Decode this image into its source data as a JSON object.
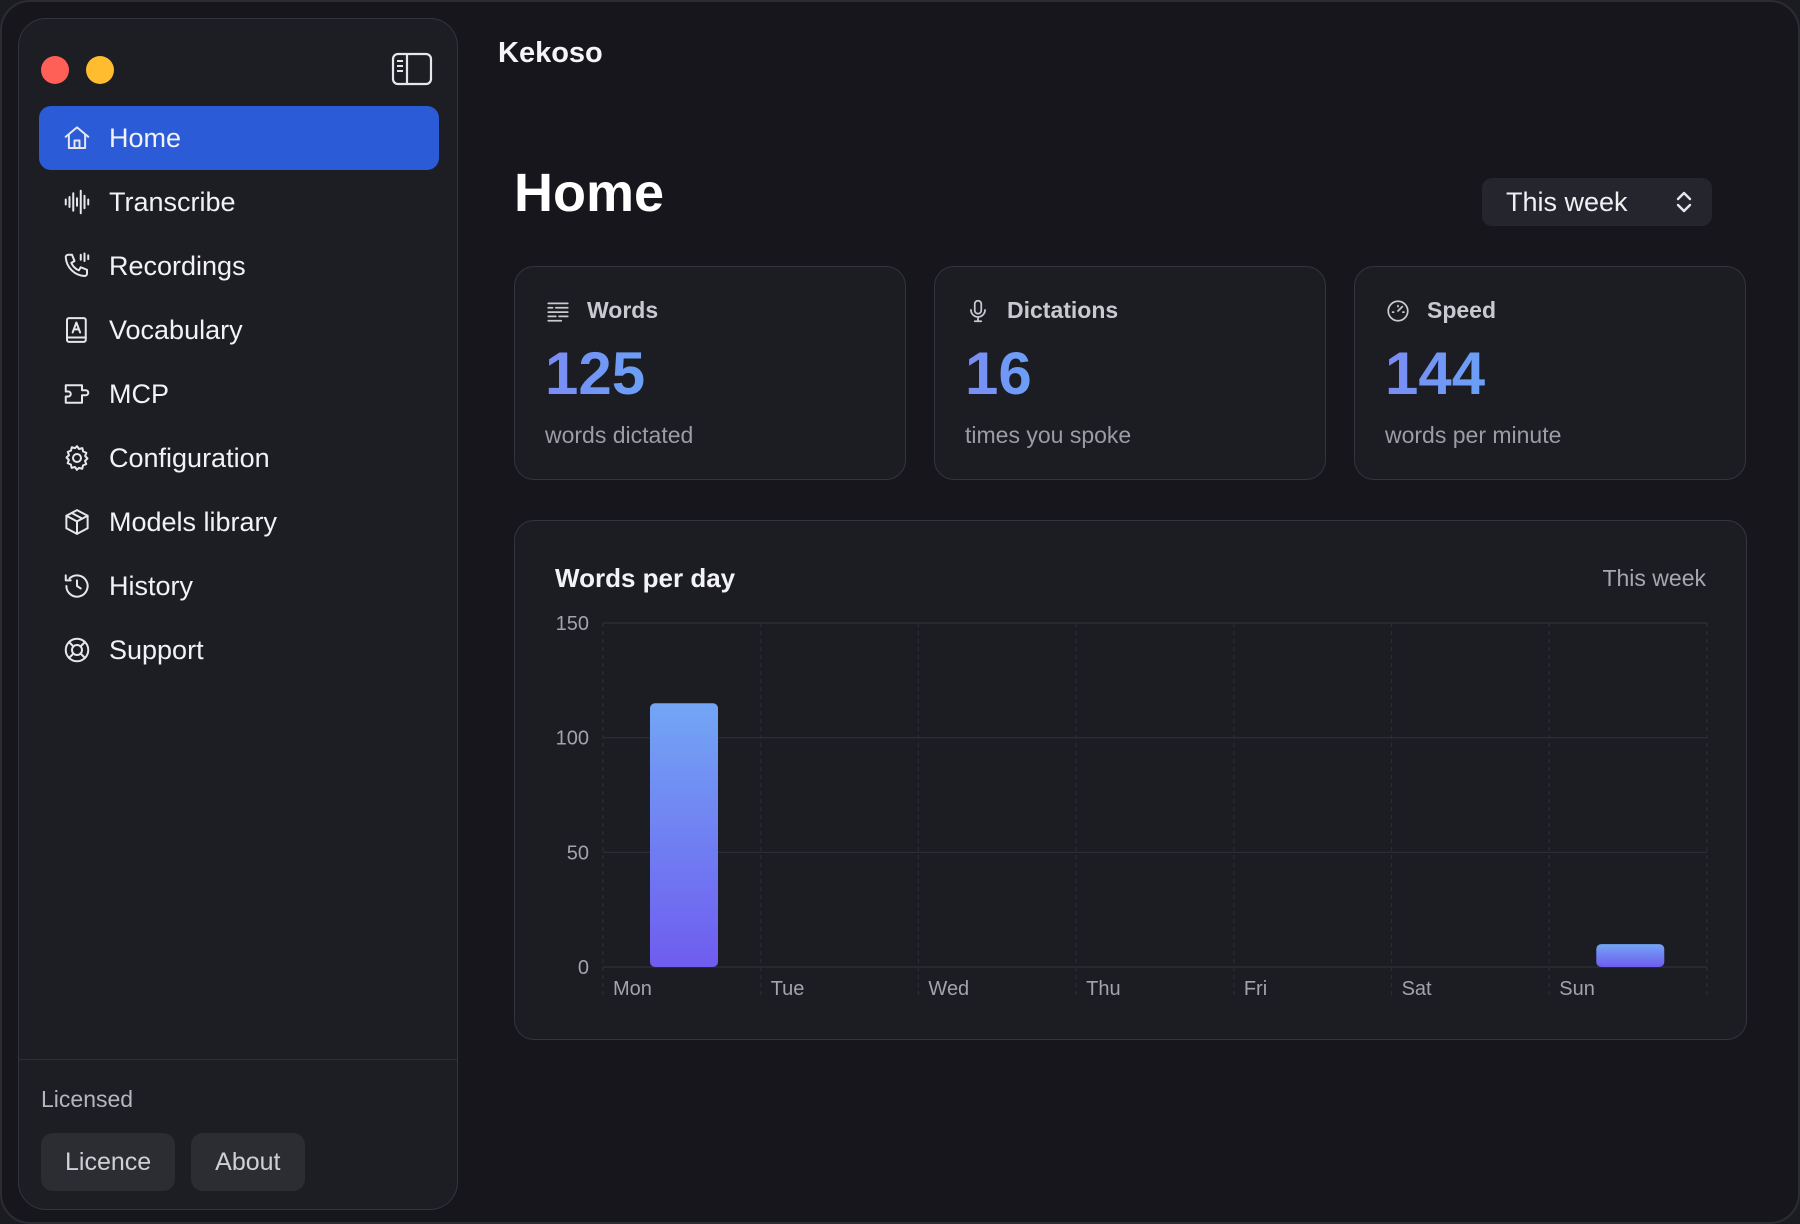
{
  "app": {
    "title": "Kekoso"
  },
  "sidebar": {
    "items": [
      {
        "label": "Home",
        "icon": "home-icon",
        "active": true
      },
      {
        "label": "Transcribe",
        "icon": "waveform-icon"
      },
      {
        "label": "Recordings",
        "icon": "phone-recording-icon"
      },
      {
        "label": "Vocabulary",
        "icon": "dictionary-icon"
      },
      {
        "label": "MCP",
        "icon": "plug-icon"
      },
      {
        "label": "Configuration",
        "icon": "gear-icon"
      },
      {
        "label": "Models library",
        "icon": "cube-icon"
      },
      {
        "label": "History",
        "icon": "history-icon"
      },
      {
        "label": "Support",
        "icon": "lifebuoy-icon"
      }
    ],
    "footer": {
      "status": "Licensed",
      "licence_label": "Licence",
      "about_label": "About"
    }
  },
  "main": {
    "page_title": "Home",
    "period_select": {
      "value": "This week"
    },
    "stats": [
      {
        "label": "Words",
        "value": "125",
        "caption": "words dictated",
        "icon": "text-lines-icon"
      },
      {
        "label": "Dictations",
        "value": "16",
        "caption": "times you spoke",
        "icon": "microphone-icon"
      },
      {
        "label": "Speed",
        "value": "144",
        "caption": "words per minute",
        "icon": "speedometer-icon"
      }
    ],
    "chart_title": "Words per day",
    "chart_period": "This week"
  },
  "colors": {
    "accent": "#2b5bd7",
    "stat_gradient_start": "#7b8cf4",
    "stat_gradient_end": "#6aa0f7",
    "bar_top": "#72a6f5",
    "bar_bottom": "#6f5cf0"
  },
  "chart_data": {
    "type": "bar",
    "title": "Words per day",
    "categories": [
      "Mon",
      "Tue",
      "Wed",
      "Thu",
      "Fri",
      "Sat",
      "Sun"
    ],
    "values": [
      115,
      0,
      0,
      0,
      0,
      0,
      10
    ],
    "ylim": [
      0,
      150
    ],
    "yticks": [
      0,
      50,
      100,
      150
    ],
    "grid": true
  }
}
